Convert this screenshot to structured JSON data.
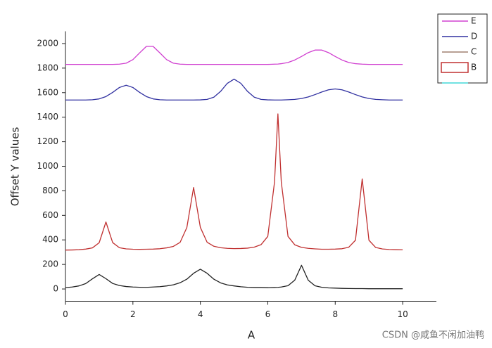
{
  "chart_data": {
    "type": "line",
    "x_label": "A",
    "y_label": "Offset Y values",
    "watermark": "CSDN @咸鱼不闲加油鸭",
    "xlim": [
      0,
      11
    ],
    "ylim": [
      -100,
      2100
    ],
    "xticks": [
      0,
      2,
      4,
      6,
      8,
      10
    ],
    "yticks": [
      0,
      200,
      400,
      600,
      800,
      1000,
      1200,
      1400,
      1600,
      1800,
      2000
    ],
    "grid": false,
    "x": [
      0,
      0.2,
      0.4,
      0.6,
      0.8,
      1,
      1.2,
      1.4,
      1.6,
      1.8,
      2,
      2.2,
      2.4,
      2.6,
      2.8,
      3,
      3.2,
      3.4,
      3.6,
      3.8,
      4,
      4.2,
      4.4,
      4.6,
      4.8,
      5,
      5.2,
      5.4,
      5.6,
      5.8,
      6,
      6.2,
      6.3,
      6.4,
      6.6,
      6.8,
      7,
      7.2,
      7.4,
      7.6,
      7.8,
      8,
      8.2,
      8.4,
      8.6,
      8.8,
      9,
      9.2,
      9.4,
      9.6,
      9.8,
      10
    ],
    "series": [
      {
        "color": "#222222",
        "values": [
          11,
          16,
          25,
          44,
          83,
          118,
          84,
          45,
          28,
          20,
          16,
          14,
          13,
          16,
          19,
          25,
          34,
          51,
          80,
          128,
          161,
          128,
          80,
          50,
          33,
          25,
          18,
          14,
          12,
          12,
          10,
          12,
          13,
          16,
          27,
          72,
          193,
          71,
          26,
          14,
          9,
          7,
          5,
          4,
          3,
          3,
          2,
          2,
          2,
          2,
          2,
          2
        ]
      },
      {
        "color": "#c03030",
        "values": [
          317,
          318,
          320,
          325,
          335,
          377,
          546,
          378,
          336,
          327,
          324,
          323,
          324,
          325,
          328,
          335,
          347,
          380,
          501,
          827,
          502,
          381,
          348,
          336,
          331,
          329,
          330,
          333,
          341,
          361,
          428,
          872,
          1427,
          872,
          428,
          360,
          339,
          331,
          327,
          324,
          324,
          325,
          328,
          340,
          397,
          897,
          397,
          338,
          326,
          322,
          320,
          319
        ]
      },
      {
        "color": "#3030a0",
        "values": [
          1540,
          1540,
          1540,
          1540,
          1542,
          1549,
          1568,
          1602,
          1642,
          1660,
          1642,
          1602,
          1568,
          1549,
          1542,
          1540,
          1540,
          1540,
          1540,
          1540,
          1541,
          1545,
          1563,
          1610,
          1676,
          1710,
          1676,
          1610,
          1563,
          1545,
          1541,
          1540,
          1540,
          1540,
          1542,
          1545,
          1552,
          1565,
          1584,
          1605,
          1623,
          1630,
          1623,
          1605,
          1584,
          1565,
          1552,
          1545,
          1542,
          1540,
          1540,
          1540
        ]
      },
      {
        "color": "#d040d0",
        "values": [
          1830,
          1830,
          1830,
          1830,
          1830,
          1830,
          1830,
          1830,
          1832,
          1840,
          1869,
          1924,
          1977,
          1977,
          1924,
          1869,
          1840,
          1832,
          1830,
          1830,
          1830,
          1830,
          1830,
          1830,
          1830,
          1830,
          1830,
          1830,
          1830,
          1830,
          1830,
          1832,
          1833,
          1836,
          1846,
          1866,
          1895,
          1926,
          1947,
          1947,
          1926,
          1895,
          1866,
          1846,
          1836,
          1832,
          1830,
          1830,
          1830,
          1830,
          1830,
          1830
        ]
      }
    ],
    "legend": [
      {
        "name": "E",
        "color": "#d040d0"
      },
      {
        "name": "D",
        "color": "#3030a0"
      },
      {
        "name": "C",
        "color": "#a08070"
      },
      {
        "name": "B",
        "color": "#c03030"
      },
      {
        "color": "#40d8d8"
      }
    ]
  }
}
